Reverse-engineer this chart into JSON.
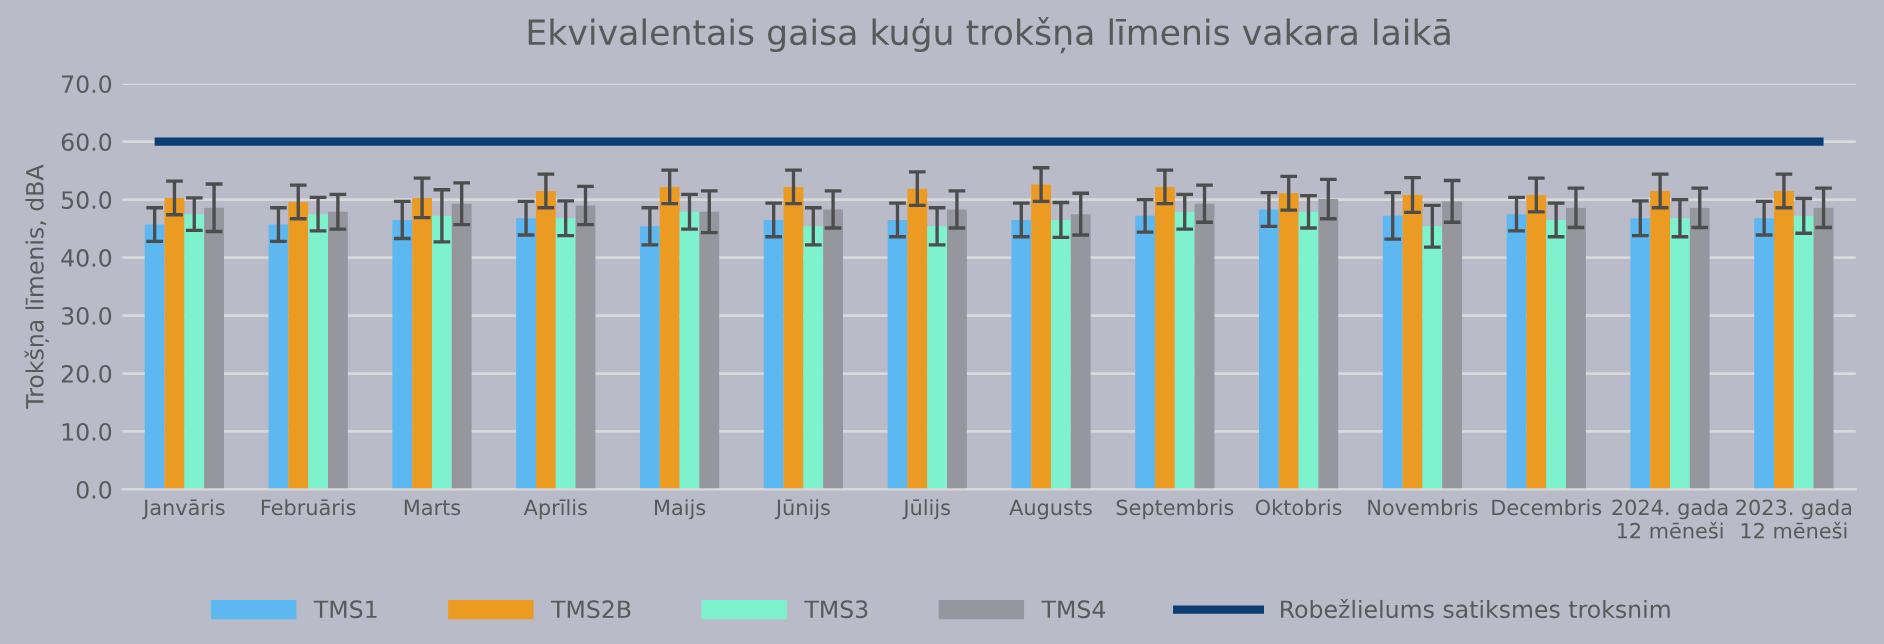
{
  "chart_data": {
    "type": "bar",
    "title": "Ekvivalentais gaisa kuģu trokšņa līmenis vakara laikā",
    "ylabel": "Trokšņa līmenis, dBA",
    "categories": [
      "Janvāris",
      "Februāris",
      "Marts",
      "Aprīlis",
      "Maijs",
      "Jūnijs",
      "Jūlijs",
      "Augusts",
      "Septembris",
      "Oktobris",
      "Novembris",
      "Decembris",
      "2024. gada\n12 mēneši",
      "2023. gada\n12 mēneši"
    ],
    "series": [
      {
        "name": "TMS1",
        "color": "#5db8f2",
        "values": [
          45.7,
          45.7,
          46.5,
          46.8,
          45.4,
          46.5,
          46.5,
          46.5,
          47.2,
          48.3,
          47.2,
          47.5,
          46.8,
          46.8
        ],
        "errors": [
          2.9,
          2.9,
          3.2,
          2.9,
          3.2,
          2.9,
          2.9,
          2.9,
          2.8,
          2.9,
          4.0,
          2.9,
          3.0,
          2.9
        ]
      },
      {
        "name": "TMS2B",
        "color": "#ec9b22",
        "values": [
          50.3,
          49.6,
          50.3,
          51.5,
          52.2,
          52.2,
          51.9,
          52.6,
          52.2,
          51.1,
          50.8,
          50.8,
          51.5,
          51.5
        ],
        "errors": [
          2.9,
          2.9,
          3.4,
          2.9,
          2.9,
          2.9,
          2.9,
          2.9,
          2.9,
          2.9,
          3.0,
          2.9,
          2.9,
          2.9
        ]
      },
      {
        "name": "TMS3",
        "color": "#7df2cc",
        "values": [
          47.5,
          47.5,
          47.2,
          46.8,
          47.9,
          45.4,
          45.4,
          46.5,
          47.9,
          47.9,
          45.4,
          46.5,
          46.8,
          47.2
        ],
        "errors": [
          2.8,
          2.9,
          4.5,
          3.0,
          3.0,
          3.2,
          3.2,
          3.0,
          3.0,
          2.8,
          3.6,
          2.9,
          3.2,
          3.0
        ]
      },
      {
        "name": "TMS4",
        "color": "#96969f",
        "values": [
          48.6,
          47.9,
          49.3,
          49.0,
          47.9,
          48.3,
          48.3,
          47.5,
          49.3,
          50.1,
          49.7,
          48.6,
          48.6,
          48.6
        ],
        "errors": [
          4.1,
          3.0,
          3.6,
          3.3,
          3.6,
          3.2,
          3.2,
          3.6,
          3.2,
          3.4,
          3.6,
          3.4,
          3.4,
          3.4
        ]
      }
    ],
    "ref_lines": [
      {
        "axis": "y",
        "value": 60,
        "label": "Robežlielums satiksmes troksnim",
        "color": "#0b3e75"
      }
    ],
    "ylim": [
      0,
      70
    ],
    "yticks": [
      {
        "value": 0,
        "label": "0.0"
      },
      {
        "value": 10,
        "label": "10.0"
      },
      {
        "value": 20,
        "label": "20.0"
      },
      {
        "value": 30,
        "label": "30.0"
      },
      {
        "value": 40,
        "label": "40.0"
      },
      {
        "value": 50,
        "label": "50.0"
      },
      {
        "value": 60,
        "label": "60.0"
      },
      {
        "value": 70,
        "label": "70.0"
      }
    ],
    "grid": "y",
    "legend": "bottom"
  }
}
